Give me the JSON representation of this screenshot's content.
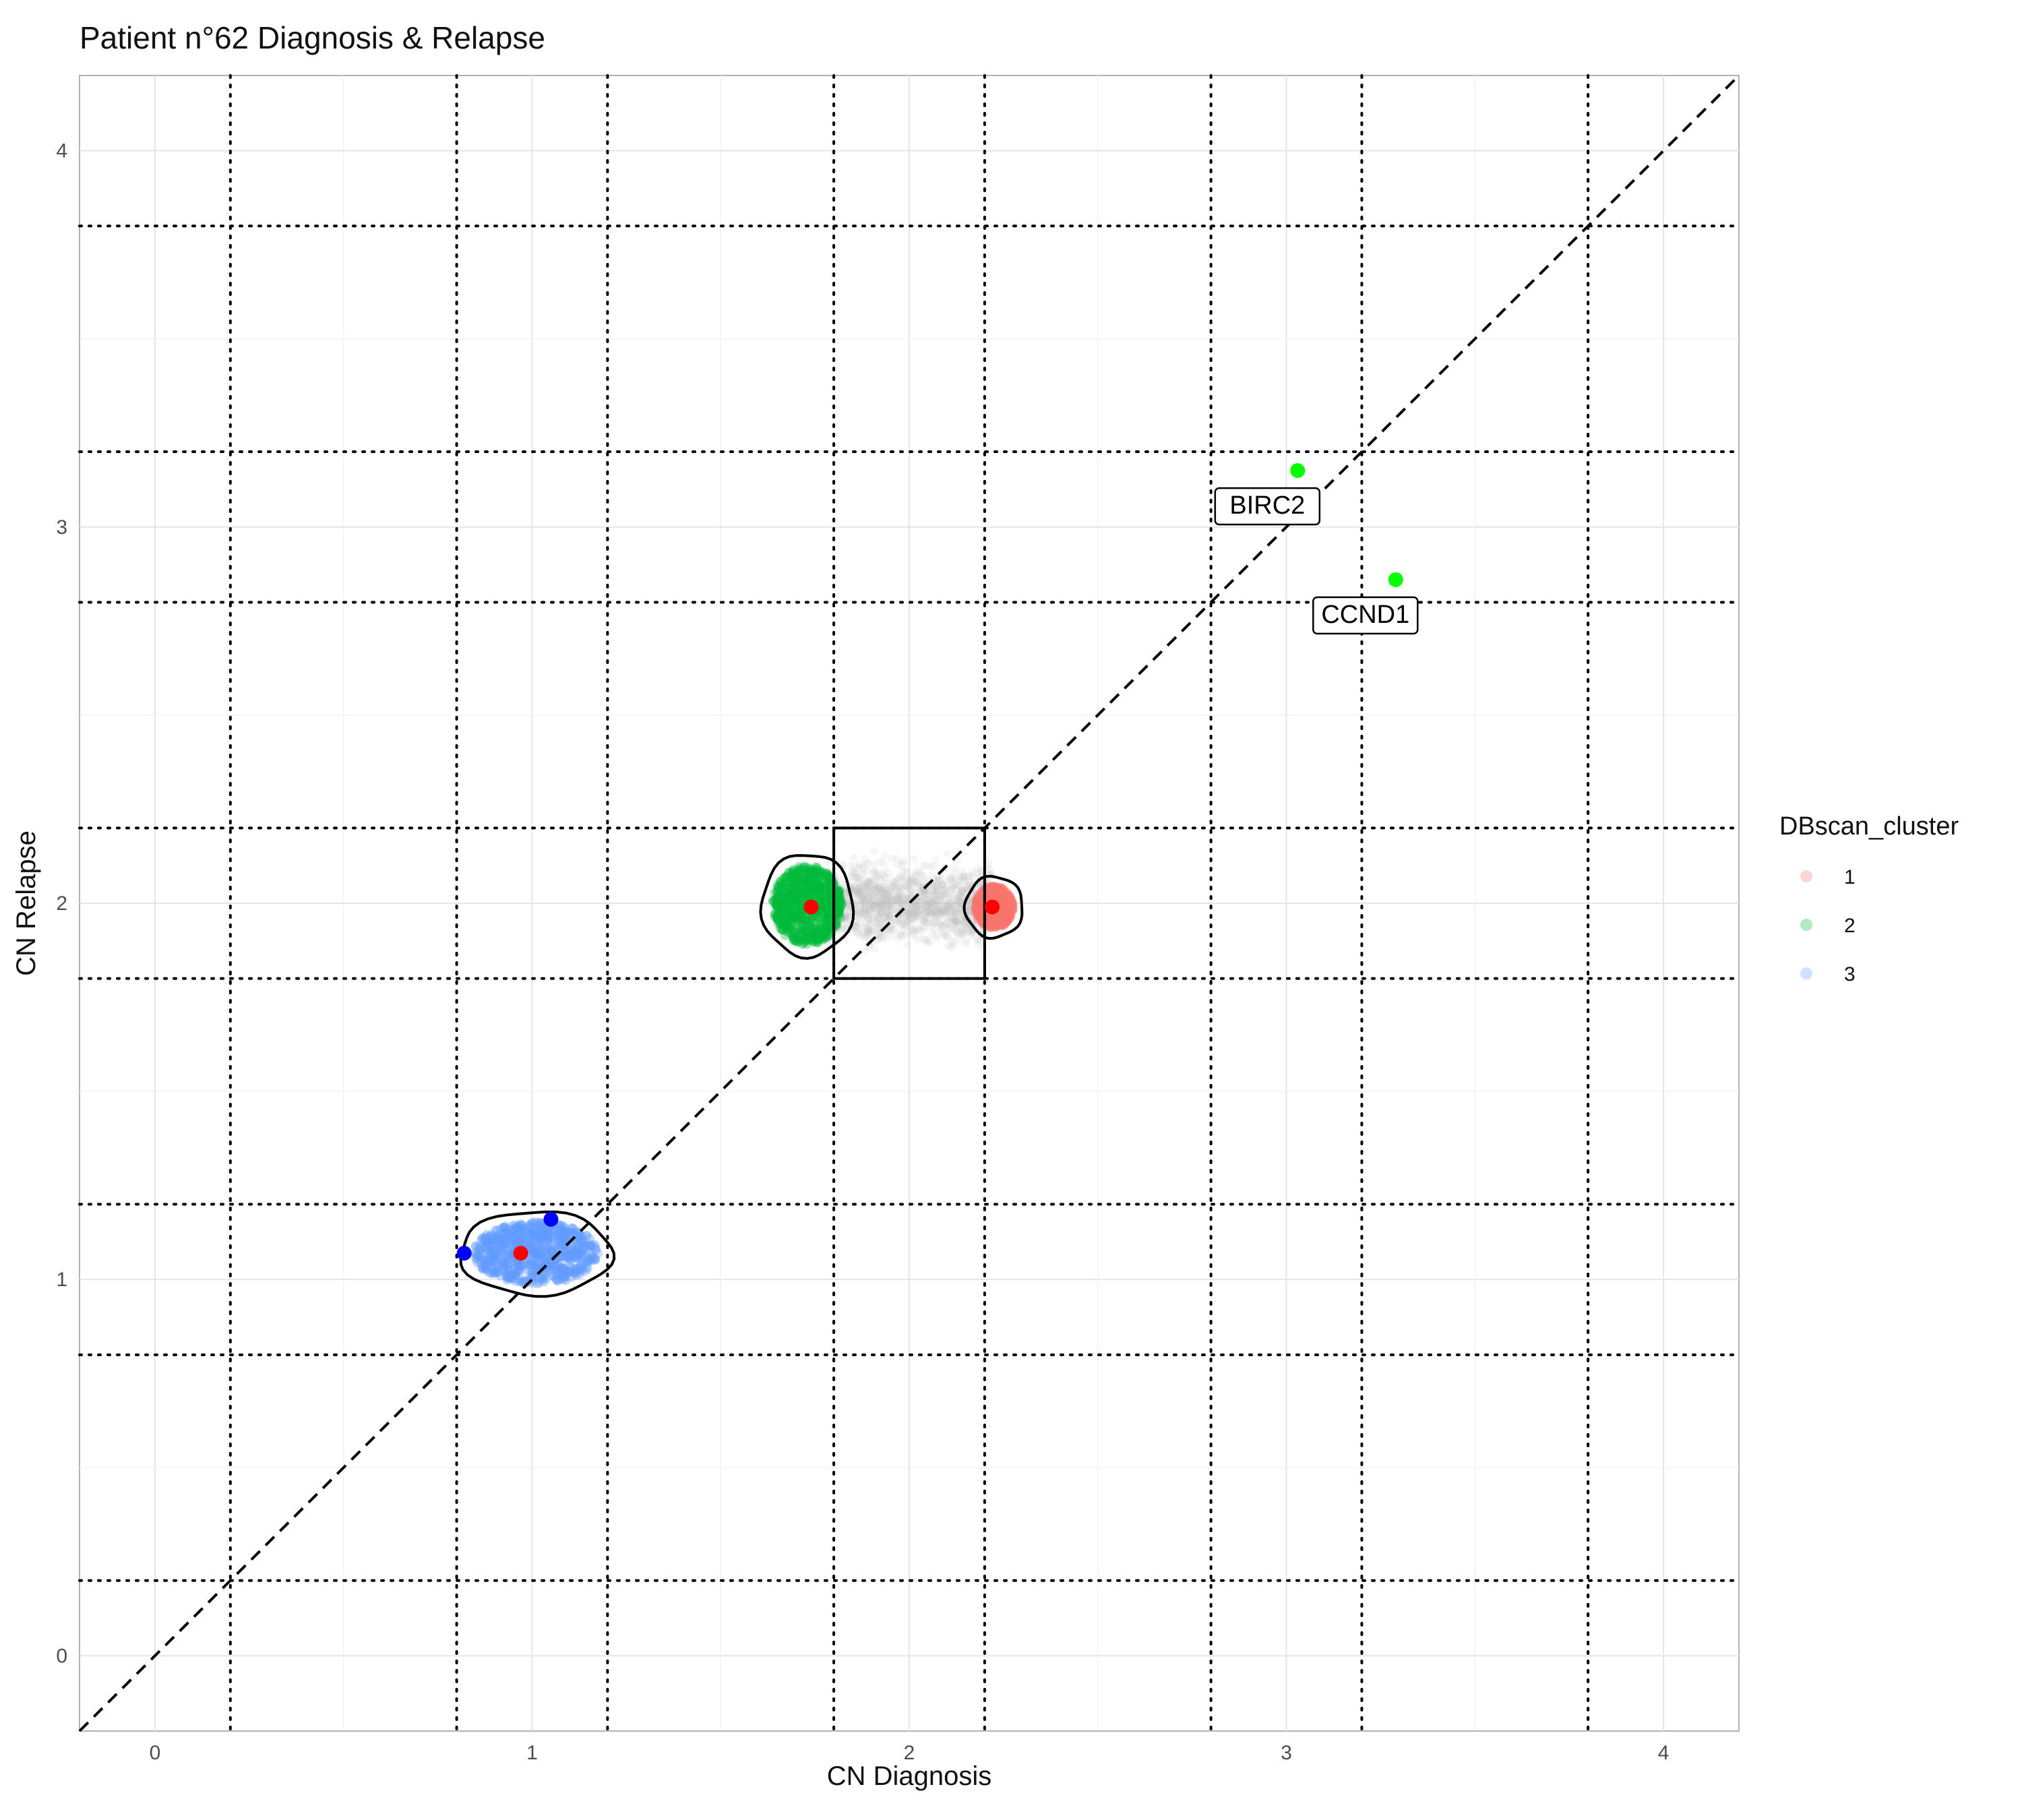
{
  "chart_data": {
    "type": "scatter",
    "title": "Patient n°62 Diagnosis & Relapse",
    "xlabel": "CN Diagnosis",
    "ylabel": "CN Relapse",
    "xlim": [
      -0.2,
      4.2
    ],
    "ylim": [
      -0.2,
      4.2
    ],
    "x_ticks": [
      "0",
      "1",
      "2",
      "3",
      "4"
    ],
    "y_ticks": [
      "0",
      "1",
      "2",
      "3",
      "4"
    ],
    "grid": true,
    "reference_line": {
      "type": "diagonal",
      "style": "dashed",
      "slope": 1,
      "intercept": 0
    },
    "threshold_lines": {
      "style": "dotted",
      "x": [
        0.2,
        0.8,
        1.2,
        1.8,
        2.2,
        2.8,
        3.2,
        3.8
      ],
      "y": [
        0.2,
        0.8,
        1.2,
        1.8,
        2.2,
        2.8,
        3.2,
        3.8
      ]
    },
    "box": {
      "x": [
        1.8,
        2.2
      ],
      "y": [
        1.8,
        2.2
      ]
    },
    "legend": {
      "title": "DBscan_cluster",
      "position": "right",
      "entries": [
        {
          "label": "1",
          "color": "#F8766D"
        },
        {
          "label": "2",
          "color": "#00BA38"
        },
        {
          "label": "3",
          "color": "#619CFF"
        }
      ]
    },
    "clusters": [
      {
        "name": "1",
        "color": "#F8766D",
        "x_range": [
          2.17,
          2.28
        ],
        "y_range": [
          1.93,
          2.05
        ],
        "center": [
          2.22,
          1.99
        ]
      },
      {
        "name": "2",
        "color": "#00BA38",
        "x_range": [
          1.63,
          1.83
        ],
        "y_range": [
          1.88,
          2.11
        ],
        "center": [
          1.74,
          1.99
        ]
      },
      {
        "name": "3",
        "color": "#619CFF",
        "x_range": [
          0.83,
          1.19
        ],
        "y_range": [
          0.98,
          1.16
        ],
        "center": [
          0.97,
          1.07
        ]
      }
    ],
    "background_points": {
      "color": "#BEBEBE",
      "x_range": [
        1.78,
        2.22
      ],
      "y_range": [
        1.85,
        2.15
      ]
    },
    "highlight_points": [
      {
        "x": 0.82,
        "y": 1.07,
        "color": "#0000FF"
      },
      {
        "x": 1.05,
        "y": 1.16,
        "color": "#0000FF"
      },
      {
        "x": 0.97,
        "y": 1.07,
        "color": "#FF0000"
      },
      {
        "x": 1.74,
        "y": 1.99,
        "color": "#FF0000"
      },
      {
        "x": 2.22,
        "y": 1.99,
        "color": "#FF0000"
      },
      {
        "x": 3.03,
        "y": 3.15,
        "color": "#00FF00",
        "label": "BIRC2"
      },
      {
        "x": 3.29,
        "y": 2.86,
        "color": "#00FF00",
        "label": "CCND1"
      }
    ]
  }
}
